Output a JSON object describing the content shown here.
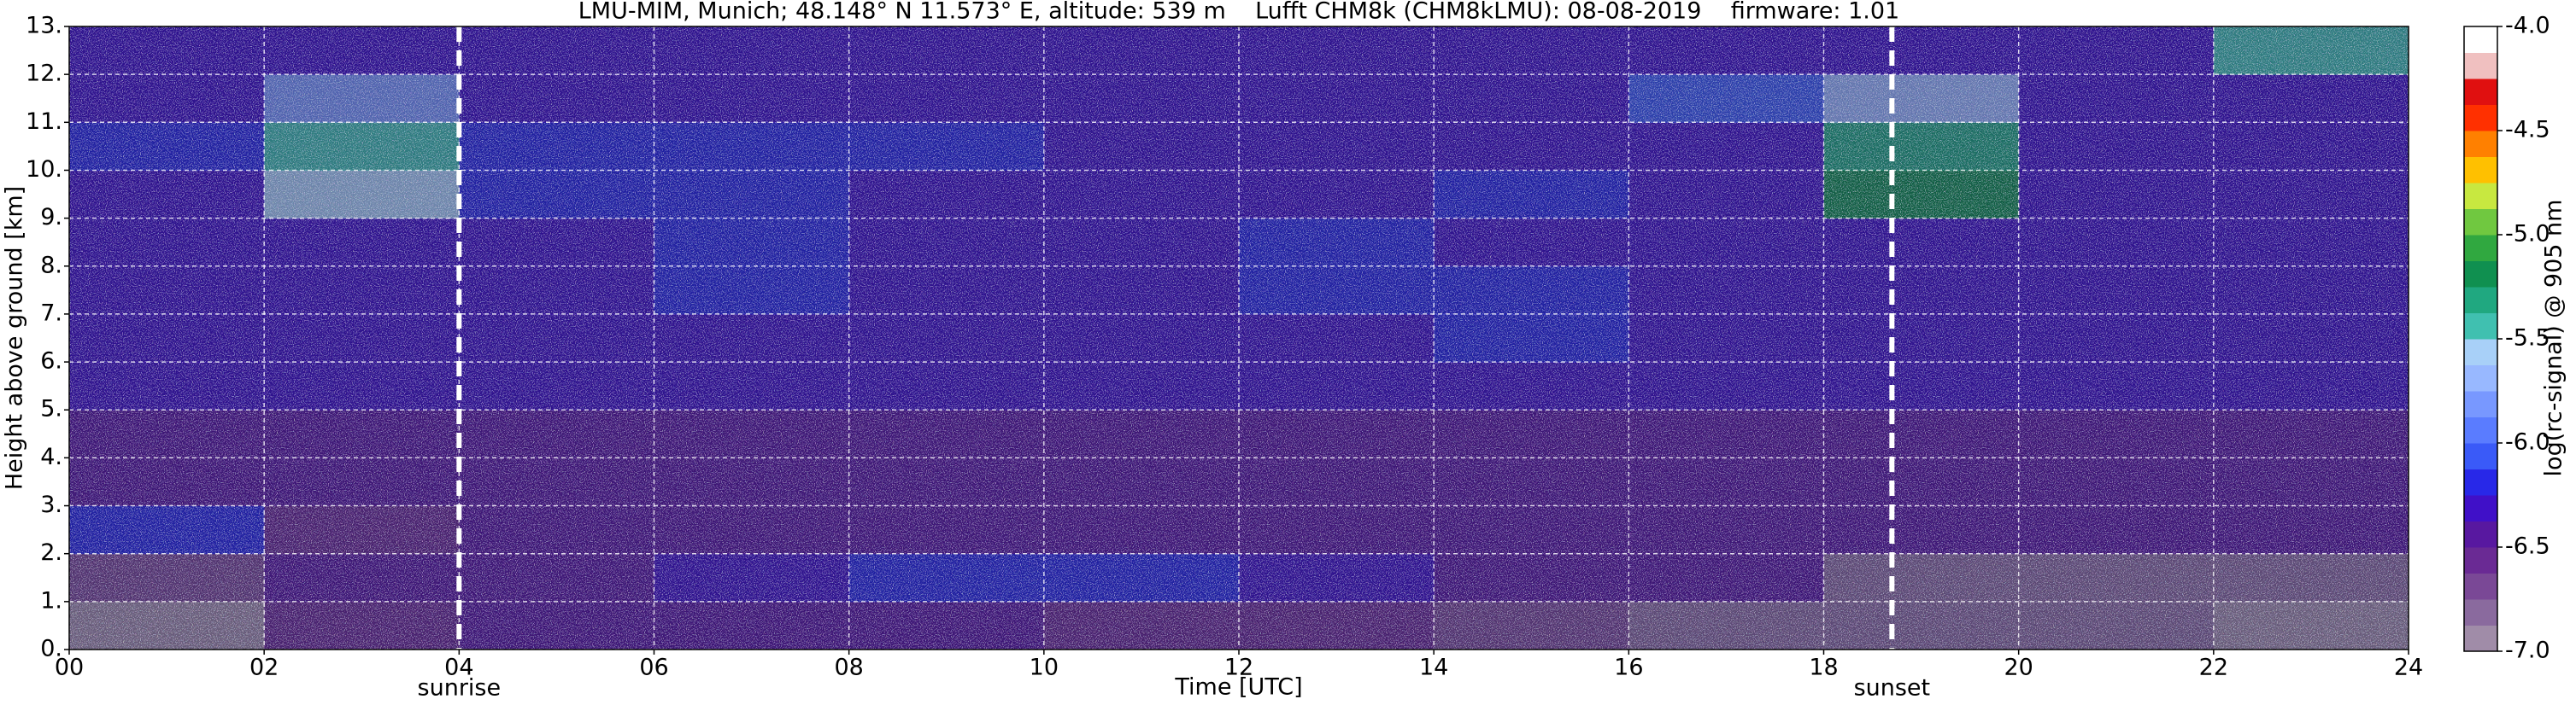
{
  "chart_data": {
    "type": "heatmap",
    "title": "LMU-MIM, Munich; 48.148° N 11.573° E, altitude: 539 m    Lufft CHM8k (CHM8kLMU): 08-08-2019    firmware: 1.01",
    "x_label": "Time [UTC]",
    "y_label": "Height above ground [km]",
    "xlim": [
      0,
      24
    ],
    "ylim": [
      0,
      13
    ],
    "xticks": [
      {
        "value": 0,
        "label": "00"
      },
      {
        "value": 2,
        "label": "02"
      },
      {
        "value": 4,
        "label": "04"
      },
      {
        "value": 6,
        "label": "06"
      },
      {
        "value": 8,
        "label": "08"
      },
      10,
      12,
      14,
      16,
      18,
      20,
      22,
      24
    ],
    "yticks": [
      {
        "value": 0,
        "label": "0."
      },
      {
        "value": 1,
        "label": "1."
      },
      {
        "value": 2,
        "label": "2."
      },
      {
        "value": 3,
        "label": "3."
      },
      {
        "value": 4,
        "label": "4."
      },
      {
        "value": 5,
        "label": "5."
      },
      {
        "value": 6,
        "label": "6."
      },
      {
        "value": 7,
        "label": "7."
      },
      {
        "value": 8,
        "label": "8."
      },
      {
        "value": 9,
        "label": "9."
      },
      {
        "value": 10,
        "label": "10."
      },
      {
        "value": 11,
        "label": "11."
      },
      {
        "value": 12,
        "label": "12."
      },
      {
        "value": 13,
        "label": "13."
      }
    ],
    "grid": true,
    "xbins": [
      0,
      2,
      4,
      6,
      8,
      10,
      12,
      14,
      16,
      18,
      20,
      22,
      24
    ],
    "ybins": [
      0,
      1,
      2,
      3,
      4,
      5,
      6,
      7,
      8,
      9,
      10,
      11,
      12,
      13
    ],
    "z": [
      [
        -6.9,
        -6.6,
        -6.5,
        -6.5,
        -6.5,
        -6.55,
        -6.6,
        -6.7,
        -6.8,
        -6.85,
        -6.85,
        -6.9
      ],
      [
        -6.7,
        -6.5,
        -6.4,
        -6.3,
        -6.2,
        -6.2,
        -6.3,
        -6.4,
        -6.5,
        -6.8,
        -6.8,
        -6.8
      ],
      [
        -6.2,
        -6.6,
        -6.5,
        -6.4,
        -6.4,
        -6.4,
        -6.4,
        -6.4,
        -6.5,
        -6.5,
        -6.5,
        -6.5
      ],
      [
        -6.5,
        -6.5,
        -6.5,
        -6.4,
        -6.4,
        -6.4,
        -6.4,
        -6.4,
        -6.5,
        -6.5,
        -6.5,
        -6.5
      ],
      [
        -6.4,
        -6.4,
        -6.4,
        -6.4,
        -6.4,
        -6.4,
        -6.4,
        -6.4,
        -6.4,
        -6.4,
        -6.4,
        -6.4
      ],
      [
        -6.3,
        -6.3,
        -6.3,
        -6.3,
        -6.3,
        -6.3,
        -6.3,
        -6.3,
        -6.3,
        -6.3,
        -6.3,
        -6.3
      ],
      [
        -6.3,
        -6.3,
        -6.3,
        -6.3,
        -6.3,
        -6.3,
        -6.3,
        -6.25,
        -6.3,
        -6.3,
        -6.3,
        -6.3
      ],
      [
        -6.3,
        -6.3,
        -6.3,
        -6.25,
        -6.3,
        -6.3,
        -6.2,
        -6.2,
        -6.3,
        -6.3,
        -6.3,
        -6.3
      ],
      [
        -6.3,
        -6.3,
        -6.3,
        -6.2,
        -6.3,
        -6.3,
        -6.2,
        -6.3,
        -6.3,
        -6.3,
        -6.3,
        -6.3
      ],
      [
        -6.3,
        -5.6,
        -6.2,
        -6.2,
        -6.3,
        -6.3,
        -6.3,
        -6.2,
        -6.3,
        -5.2,
        -6.3,
        -6.3
      ],
      [
        -6.2,
        -5.4,
        -6.2,
        -6.2,
        -6.25,
        -6.3,
        -6.3,
        -6.3,
        -6.3,
        -5.3,
        -6.3,
        -6.3
      ],
      [
        -6.3,
        -5.8,
        -6.3,
        -6.3,
        -6.3,
        -6.3,
        -6.3,
        -6.3,
        -6.1,
        -5.7,
        -6.3,
        -6.3
      ],
      [
        -6.3,
        -6.3,
        -6.3,
        -6.3,
        -6.3,
        -6.3,
        -6.3,
        -6.3,
        -6.3,
        -6.3,
        -6.3,
        -5.4
      ]
    ],
    "colorbar": {
      "label": "log(rc-signal) @ 905 nm",
      "lim": [
        -7,
        -4
      ],
      "ticks": [
        {
          "value": -4,
          "label": "-4.0"
        },
        -4.5,
        {
          "value": -5,
          "label": "-5.0"
        },
        -5.5,
        {
          "value": -6,
          "label": "-6.0"
        },
        -6.5,
        {
          "value": -7,
          "label": "-7.0"
        }
      ],
      "colors": [
        "#a08ca8",
        "#8a6a9e",
        "#7a4896",
        "#6a2a94",
        "#5818a0",
        "#4010c8",
        "#2828e8",
        "#3a5af8",
        "#5a7cff",
        "#7898ff",
        "#98b8ff",
        "#a8d0f8",
        "#40c0b0",
        "#20a880",
        "#109050",
        "#30a840",
        "#70c840",
        "#c8e840",
        "#ffc000",
        "#ff8000",
        "#ff3000",
        "#e01010",
        "#f0c0c0",
        "#ffffff"
      ]
    },
    "annotations": [
      {
        "text": "sunrise",
        "x": 4
      },
      {
        "text": "sunset",
        "x": 18.7
      }
    ]
  }
}
